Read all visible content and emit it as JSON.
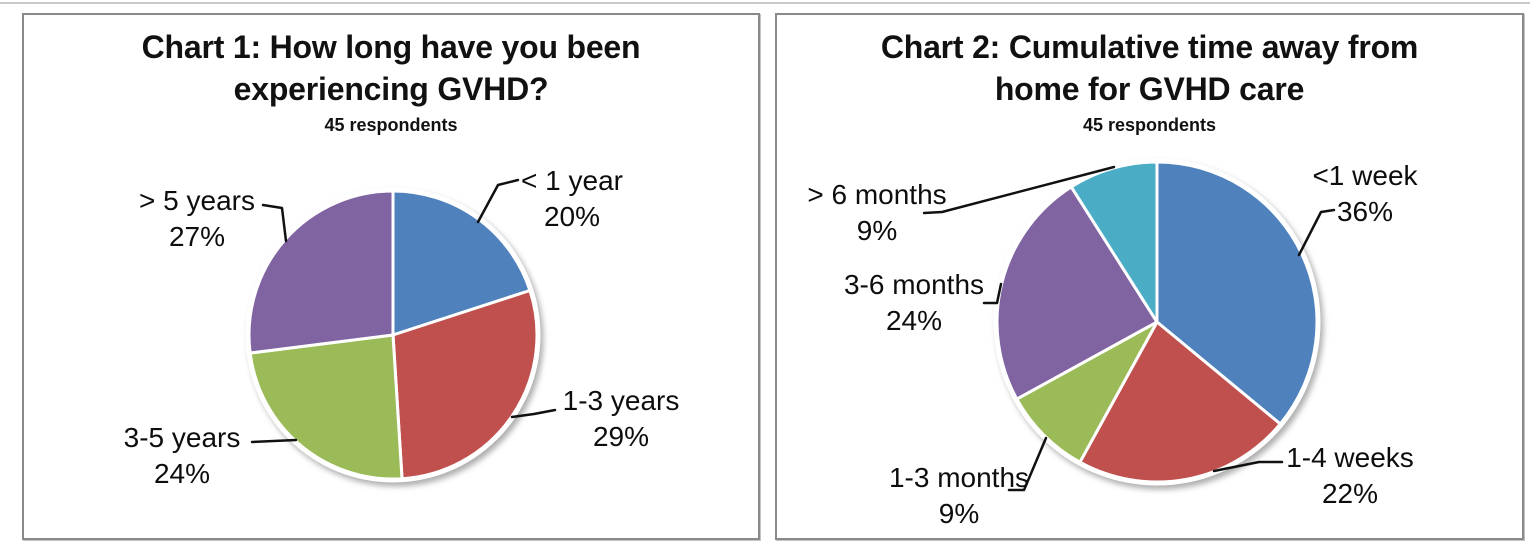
{
  "chart_data": [
    {
      "type": "pie",
      "title": "Chart 1: How long have you been experiencing GVHD?",
      "subtitle": "45 respondents",
      "respondents": 45,
      "start_angle": "12 o'clock",
      "direction": "clockwise",
      "legend_position": "callout-labels",
      "slices": [
        {
          "label": "< 1 year",
          "percent": 20,
          "percent_label": "20%",
          "color": "#4F81BD"
        },
        {
          "label": "1-3 years",
          "percent": 29,
          "percent_label": "29%",
          "color": "#C0504D"
        },
        {
          "label": "3-5 years",
          "percent": 24,
          "percent_label": "24%",
          "color": "#9BBB59"
        },
        {
          "label": "> 5 years",
          "percent": 27,
          "percent_label": "27%",
          "color": "#8064A2"
        }
      ]
    },
    {
      "type": "pie",
      "title": "Chart 2: Cumulative time away from home for GVHD care",
      "subtitle": "45 respondents",
      "respondents": 45,
      "start_angle": "12 o'clock",
      "direction": "clockwise",
      "legend_position": "callout-labels",
      "slices": [
        {
          "label": "<1 week",
          "percent": 36,
          "percent_label": "36%",
          "color": "#4F81BD"
        },
        {
          "label": "1-4 weeks",
          "percent": 22,
          "percent_label": "22%",
          "color": "#C0504D"
        },
        {
          "label": "1-3 months",
          "percent": 9,
          "percent_label": "9%",
          "color": "#9BBB59"
        },
        {
          "label": "3-6 months",
          "percent": 24,
          "percent_label": "24%",
          "color": "#8064A2"
        },
        {
          "label": "> 6 months",
          "percent": 9,
          "percent_label": "9%",
          "color": "#4BACC6"
        }
      ]
    }
  ]
}
